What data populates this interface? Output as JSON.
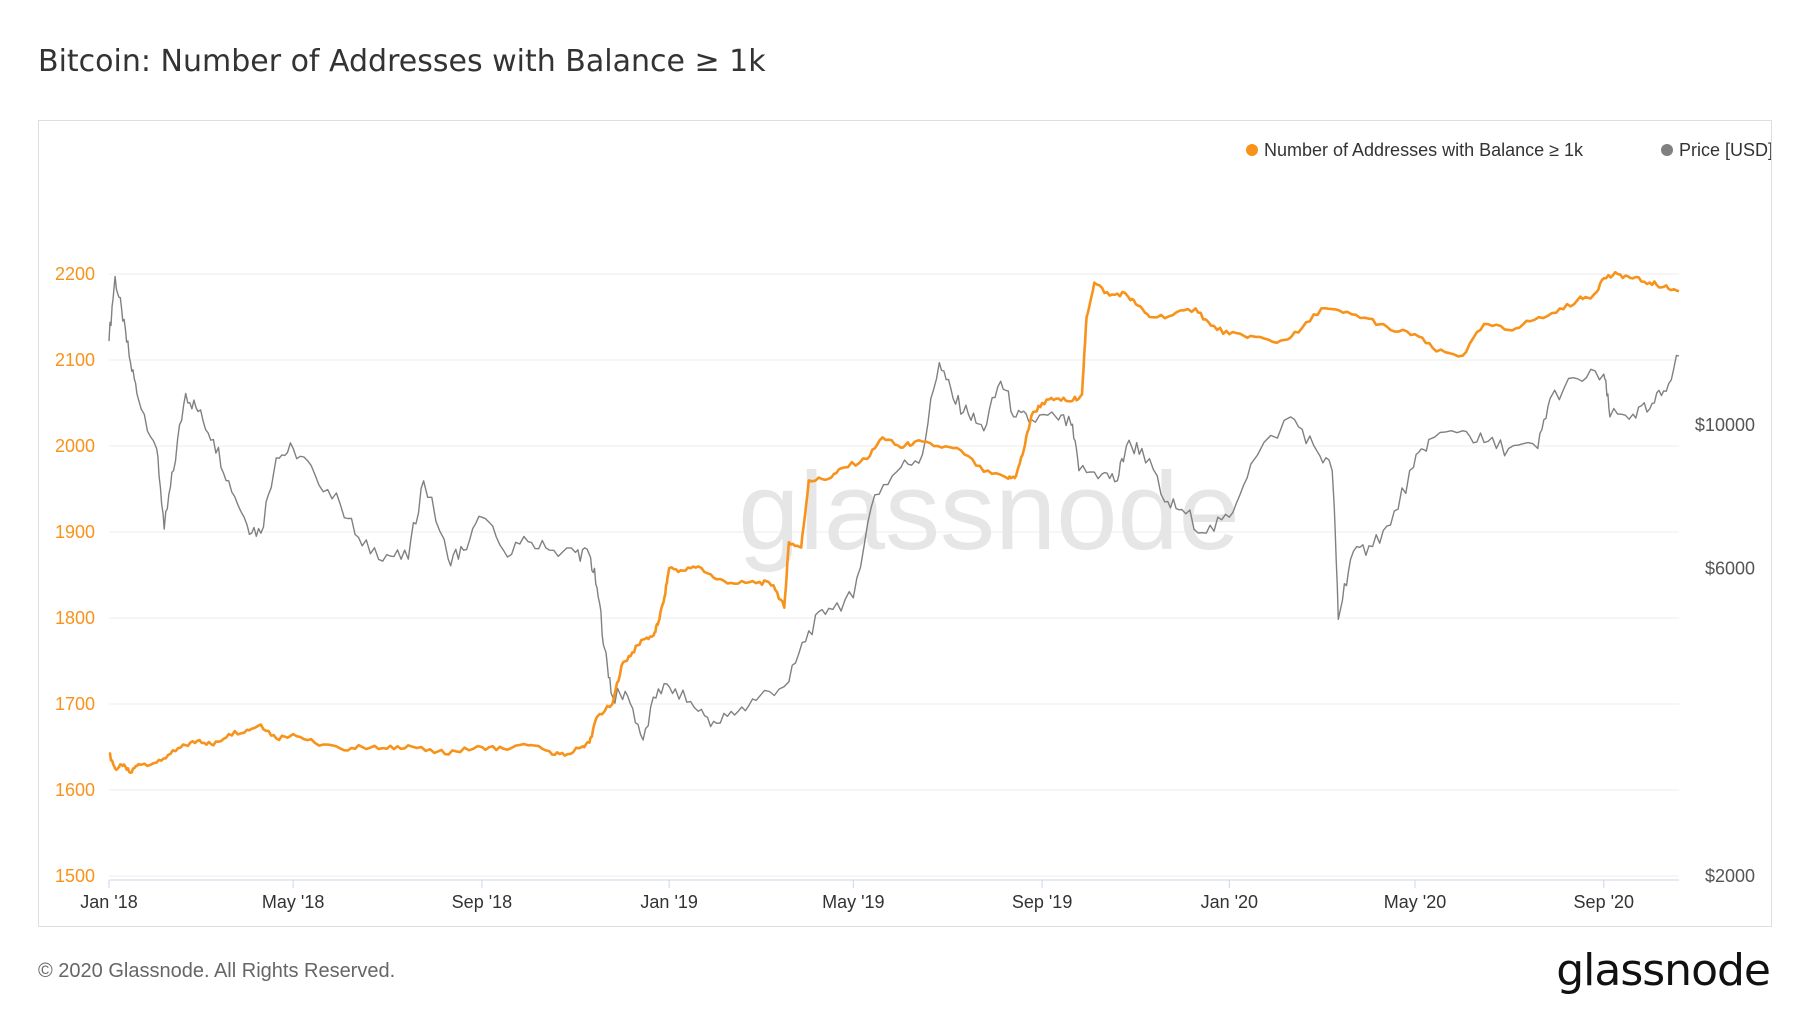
{
  "title": "Bitcoin: Number of Addresses with Balance ≥ 1k",
  "footer": {
    "copyright": "© 2020 Glassnode. All Rights Reserved.",
    "brand": "glassnode"
  },
  "watermark": "glassnode",
  "colors": {
    "orange": "#f7931a",
    "gray": "#808080",
    "grid": "#eeeeee"
  },
  "chart_data": {
    "type": "line",
    "title": "Bitcoin: Number of Addresses with Balance ≥ 1k",
    "grid": true,
    "legend_position": "top-right",
    "x_axis": {
      "range": [
        "2018-01-01",
        "2020-10-20"
      ],
      "tick_labels": [
        "Jan '18",
        "May '18",
        "Sep '18",
        "Jan '19",
        "May '19",
        "Sep '19",
        "Jan '20",
        "May '20",
        "Sep '20"
      ],
      "tick_dates": [
        "2018-01-01",
        "2018-05-01",
        "2018-09-01",
        "2019-01-01",
        "2019-05-01",
        "2019-09-01",
        "2020-01-01",
        "2020-05-01",
        "2020-09-01"
      ]
    },
    "y_left": {
      "range": [
        1500,
        2250
      ],
      "ticks": [
        1500,
        1600,
        1700,
        1800,
        1900,
        2000,
        2100,
        2200
      ]
    },
    "y_right": {
      "scale": "log",
      "range": [
        2000,
        20000
      ],
      "ticks": [
        2000,
        6000,
        10000
      ],
      "tick_labels": [
        "$2000",
        "$6000",
        "$10000"
      ]
    },
    "series": [
      {
        "name": "Number of Addresses with Balance ≥ 1k",
        "axis": "left",
        "color": "#f7931a",
        "points": [
          [
            "2018-01-01",
            1643
          ],
          [
            "2018-01-05",
            1625
          ],
          [
            "2018-01-10",
            1628
          ],
          [
            "2018-01-15",
            1620
          ],
          [
            "2018-01-20",
            1630
          ],
          [
            "2018-02-01",
            1632
          ],
          [
            "2018-02-10",
            1642
          ],
          [
            "2018-02-20",
            1652
          ],
          [
            "2018-03-01",
            1658
          ],
          [
            "2018-03-10",
            1652
          ],
          [
            "2018-03-20",
            1665
          ],
          [
            "2018-04-01",
            1670
          ],
          [
            "2018-04-10",
            1676
          ],
          [
            "2018-04-20",
            1660
          ],
          [
            "2018-05-01",
            1665
          ],
          [
            "2018-05-15",
            1655
          ],
          [
            "2018-06-01",
            1648
          ],
          [
            "2018-06-15",
            1650
          ],
          [
            "2018-07-01",
            1648
          ],
          [
            "2018-07-15",
            1652
          ],
          [
            "2018-08-01",
            1643
          ],
          [
            "2018-08-15",
            1645
          ],
          [
            "2018-09-01",
            1650
          ],
          [
            "2018-09-15",
            1648
          ],
          [
            "2018-10-01",
            1652
          ],
          [
            "2018-10-15",
            1645
          ],
          [
            "2018-10-25",
            1640
          ],
          [
            "2018-11-05",
            1650
          ],
          [
            "2018-11-10",
            1655
          ],
          [
            "2018-11-15",
            1685
          ],
          [
            "2018-11-25",
            1700
          ],
          [
            "2018-12-01",
            1745
          ],
          [
            "2018-12-08",
            1760
          ],
          [
            "2018-12-15",
            1775
          ],
          [
            "2018-12-22",
            1780
          ],
          [
            "2018-12-25",
            1795
          ],
          [
            "2018-12-29",
            1825
          ],
          [
            "2019-01-01",
            1858
          ],
          [
            "2019-01-10",
            1855
          ],
          [
            "2019-01-20",
            1860
          ],
          [
            "2019-02-01",
            1845
          ],
          [
            "2019-02-15",
            1840
          ],
          [
            "2019-03-01",
            1842
          ],
          [
            "2019-03-10",
            1838
          ],
          [
            "2019-03-17",
            1812
          ],
          [
            "2019-03-20",
            1888
          ],
          [
            "2019-03-28",
            1882
          ],
          [
            "2019-04-02",
            1960
          ],
          [
            "2019-04-15",
            1962
          ],
          [
            "2019-04-25",
            1975
          ],
          [
            "2019-05-10",
            1985
          ],
          [
            "2019-05-20",
            2010
          ],
          [
            "2019-06-01",
            1998
          ],
          [
            "2019-06-10",
            2005
          ],
          [
            "2019-06-25",
            2000
          ],
          [
            "2019-07-10",
            1995
          ],
          [
            "2019-07-25",
            1970
          ],
          [
            "2019-08-10",
            1962
          ],
          [
            "2019-08-15",
            1965
          ],
          [
            "2019-08-20",
            1995
          ],
          [
            "2019-08-25",
            2035
          ],
          [
            "2019-09-01",
            2050
          ],
          [
            "2019-09-10",
            2055
          ],
          [
            "2019-09-20",
            2052
          ],
          [
            "2019-09-27",
            2060
          ],
          [
            "2019-09-30",
            2150
          ],
          [
            "2019-10-05",
            2190
          ],
          [
            "2019-10-15",
            2175
          ],
          [
            "2019-10-25",
            2178
          ],
          [
            "2019-11-01",
            2165
          ],
          [
            "2019-11-10",
            2150
          ],
          [
            "2019-11-25",
            2152
          ],
          [
            "2019-12-10",
            2160
          ],
          [
            "2019-12-20",
            2140
          ],
          [
            "2020-01-01",
            2130
          ],
          [
            "2020-01-15",
            2128
          ],
          [
            "2020-02-01",
            2120
          ],
          [
            "2020-02-15",
            2132
          ],
          [
            "2020-03-01",
            2160
          ],
          [
            "2020-03-15",
            2155
          ],
          [
            "2020-04-01",
            2148
          ],
          [
            "2020-04-15",
            2135
          ],
          [
            "2020-05-01",
            2130
          ],
          [
            "2020-05-15",
            2110
          ],
          [
            "2020-06-01",
            2105
          ],
          [
            "2020-06-15",
            2142
          ],
          [
            "2020-07-01",
            2135
          ],
          [
            "2020-07-15",
            2145
          ],
          [
            "2020-08-01",
            2155
          ],
          [
            "2020-08-15",
            2170
          ],
          [
            "2020-08-25",
            2175
          ],
          [
            "2020-09-01",
            2195
          ],
          [
            "2020-09-10",
            2200
          ],
          [
            "2020-09-20",
            2195
          ],
          [
            "2020-10-01",
            2190
          ],
          [
            "2020-10-10",
            2185
          ],
          [
            "2020-10-20",
            2180
          ]
        ]
      },
      {
        "name": "Price [USD]",
        "axis": "right",
        "color": "#808080",
        "points": [
          [
            "2018-01-01",
            13500
          ],
          [
            "2018-01-05",
            17000
          ],
          [
            "2018-01-10",
            14500
          ],
          [
            "2018-01-15",
            12500
          ],
          [
            "2018-01-20",
            11000
          ],
          [
            "2018-02-01",
            9200
          ],
          [
            "2018-02-06",
            6900
          ],
          [
            "2018-02-12",
            8500
          ],
          [
            "2018-02-20",
            11200
          ],
          [
            "2018-02-28",
            10500
          ],
          [
            "2018-03-10",
            9500
          ],
          [
            "2018-03-20",
            8200
          ],
          [
            "2018-04-01",
            7000
          ],
          [
            "2018-04-10",
            6800
          ],
          [
            "2018-04-20",
            8900
          ],
          [
            "2018-05-01",
            9200
          ],
          [
            "2018-05-15",
            8400
          ],
          [
            "2018-06-01",
            7500
          ],
          [
            "2018-06-15",
            6500
          ],
          [
            "2018-07-01",
            6300
          ],
          [
            "2018-07-15",
            6200
          ],
          [
            "2018-07-25",
            8200
          ],
          [
            "2018-08-10",
            6200
          ],
          [
            "2018-08-20",
            6400
          ],
          [
            "2018-09-01",
            7200
          ],
          [
            "2018-09-15",
            6400
          ],
          [
            "2018-10-01",
            6600
          ],
          [
            "2018-10-15",
            6400
          ],
          [
            "2018-11-01",
            6350
          ],
          [
            "2018-11-10",
            6300
          ],
          [
            "2018-11-15",
            5600
          ],
          [
            "2018-11-20",
            4500
          ],
          [
            "2018-11-25",
            3800
          ],
          [
            "2018-12-05",
            3800
          ],
          [
            "2018-12-15",
            3250
          ],
          [
            "2018-12-25",
            3900
          ],
          [
            "2019-01-05",
            3900
          ],
          [
            "2019-01-20",
            3600
          ],
          [
            "2019-02-01",
            3450
          ],
          [
            "2019-02-15",
            3600
          ],
          [
            "2019-03-01",
            3800
          ],
          [
            "2019-03-20",
            4000
          ],
          [
            "2019-04-02",
            4800
          ],
          [
            "2019-04-15",
            5200
          ],
          [
            "2019-05-01",
            5400
          ],
          [
            "2019-05-15",
            7800
          ],
          [
            "2019-06-01",
            8600
          ],
          [
            "2019-06-15",
            9000
          ],
          [
            "2019-06-26",
            12500
          ],
          [
            "2019-07-05",
            11000
          ],
          [
            "2019-07-15",
            10400
          ],
          [
            "2019-07-25",
            9800
          ],
          [
            "2019-08-05",
            11700
          ],
          [
            "2019-08-15",
            10300
          ],
          [
            "2019-08-25",
            10200
          ],
          [
            "2019-09-10",
            10300
          ],
          [
            "2019-09-20",
            10000
          ],
          [
            "2019-09-25",
            8500
          ],
          [
            "2019-10-10",
            8400
          ],
          [
            "2019-10-20",
            8200
          ],
          [
            "2019-10-26",
            9300
          ],
          [
            "2019-11-05",
            9200
          ],
          [
            "2019-11-20",
            7600
          ],
          [
            "2019-12-01",
            7400
          ],
          [
            "2019-12-17",
            6800
          ],
          [
            "2020-01-01",
            7200
          ],
          [
            "2020-01-15",
            8700
          ],
          [
            "2020-02-10",
            10300
          ],
          [
            "2020-02-25",
            9300
          ],
          [
            "2020-03-08",
            8500
          ],
          [
            "2020-03-12",
            5000
          ],
          [
            "2020-03-20",
            6200
          ],
          [
            "2020-04-01",
            6500
          ],
          [
            "2020-04-15",
            7000
          ],
          [
            "2020-04-30",
            8600
          ],
          [
            "2020-05-10",
            9500
          ],
          [
            "2020-06-01",
            9800
          ],
          [
            "2020-06-15",
            9400
          ],
          [
            "2020-07-01",
            9200
          ],
          [
            "2020-07-20",
            9200
          ],
          [
            "2020-07-28",
            11000
          ],
          [
            "2020-08-15",
            11800
          ],
          [
            "2020-09-01",
            12000
          ],
          [
            "2020-09-05",
            10300
          ],
          [
            "2020-09-20",
            10400
          ],
          [
            "2020-10-01",
            10600
          ],
          [
            "2020-10-10",
            11300
          ],
          [
            "2020-10-20",
            12800
          ]
        ]
      }
    ]
  }
}
